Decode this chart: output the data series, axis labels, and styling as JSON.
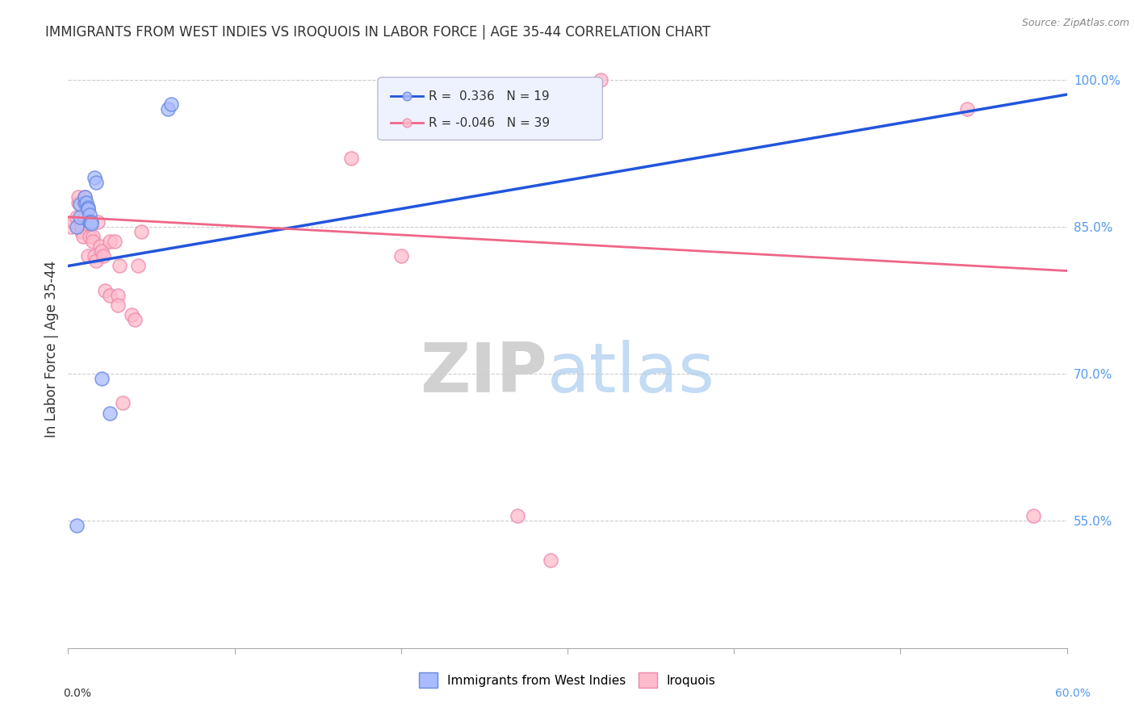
{
  "title": "IMMIGRANTS FROM WEST INDIES VS IROQUOIS IN LABOR FORCE | AGE 35-44 CORRELATION CHART",
  "source": "Source: ZipAtlas.com",
  "ylabel": "In Labor Force | Age 35-44",
  "xlim": [
    0.0,
    60.0
  ],
  "ylim": [
    0.42,
    1.03
  ],
  "ytick_values": [
    0.55,
    0.7,
    0.85,
    1.0
  ],
  "ytick_labels": [
    "55.0%",
    "70.0%",
    "85.0%",
    "100.0%"
  ],
  "legend_blue_r": "0.336",
  "legend_blue_n": "19",
  "legend_pink_r": "-0.046",
  "legend_pink_n": "39",
  "blue_fill": "#AABBFF",
  "blue_edge": "#6688DD",
  "pink_fill": "#FFBBCC",
  "pink_edge": "#EE88AA",
  "trendline_blue": "#2255DD",
  "trendline_pink": "#EE6688",
  "blue_scatter_x": [
    0.5,
    0.7,
    0.7,
    1.0,
    1.0,
    1.1,
    1.2,
    1.2,
    1.3,
    1.3,
    1.4,
    1.4,
    1.6,
    1.7,
    2.0,
    2.5,
    6.0,
    6.2,
    0.5
  ],
  "blue_scatter_y": [
    0.85,
    0.873,
    0.86,
    0.875,
    0.88,
    0.875,
    0.87,
    0.868,
    0.862,
    0.855,
    0.855,
    0.853,
    0.9,
    0.895,
    0.695,
    0.66,
    0.97,
    0.975,
    0.545
  ],
  "pink_scatter_x": [
    0.2,
    0.3,
    0.5,
    0.6,
    0.6,
    0.8,
    0.8,
    0.9,
    1.0,
    1.0,
    1.2,
    1.3,
    1.5,
    1.5,
    1.6,
    1.7,
    1.8,
    1.9,
    2.0,
    2.1,
    2.2,
    2.5,
    2.5,
    2.8,
    3.0,
    3.0,
    3.1,
    3.3,
    3.8,
    4.0,
    4.2,
    4.4,
    17.0,
    20.0,
    27.0,
    29.0,
    32.0,
    54.0,
    58.0
  ],
  "pink_scatter_y": [
    0.85,
    0.855,
    0.86,
    0.875,
    0.88,
    0.845,
    0.85,
    0.84,
    0.88,
    0.86,
    0.82,
    0.84,
    0.84,
    0.835,
    0.82,
    0.815,
    0.855,
    0.83,
    0.825,
    0.82,
    0.785,
    0.78,
    0.835,
    0.835,
    0.78,
    0.77,
    0.81,
    0.67,
    0.76,
    0.755,
    0.81,
    0.845,
    0.92,
    0.82,
    0.555,
    0.51,
    1.0,
    0.97,
    0.555
  ],
  "blue_trendline_x": [
    0.0,
    60.0
  ],
  "blue_trendline_y": [
    0.81,
    0.985
  ],
  "pink_trendline_x": [
    0.0,
    60.0
  ],
  "pink_trendline_y": [
    0.86,
    0.805
  ],
  "watermark_zip": "ZIP",
  "watermark_atlas": "atlas",
  "background_color": "#FFFFFF",
  "grid_color": "#CCCCCC"
}
